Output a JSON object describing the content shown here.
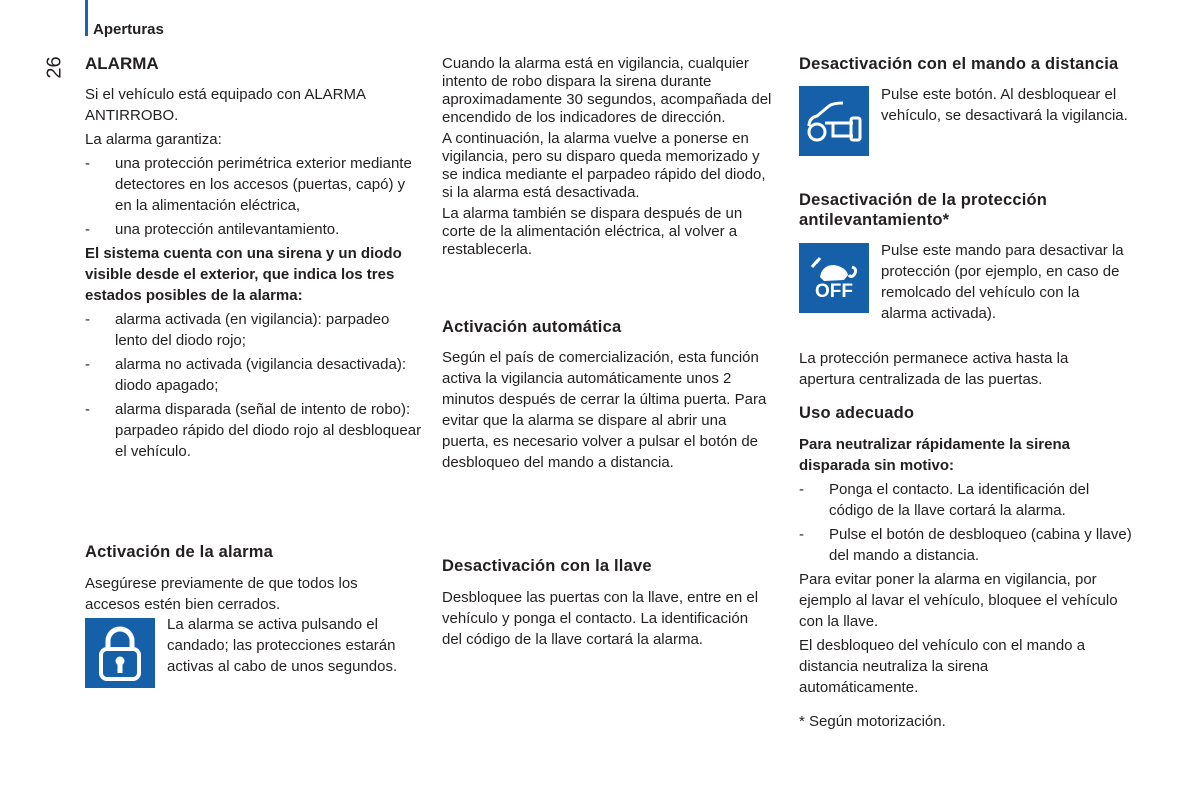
{
  "header": {
    "section": "Aperturas",
    "page_number": "26"
  },
  "col1": {
    "title": "ALARMA",
    "intro": [
      "Si el vehículo está equipado con ALARMA ANTIRROBO.",
      "La alarma garantiza:"
    ],
    "guarantees": [
      "una protección perimétrica exterior mediante detectores en los accesos (puertas, capó) y en la alimentación eléctrica,",
      "una protección antilevantamiento."
    ],
    "bold_text": "El sistema cuenta con una sirena y un diodo visible desde el exterior, que indica los tres estados posibles de la alarma:",
    "states": [
      "alarma activada (en vigilancia): parpadeo lento del diodo rojo;",
      "alarma no activada (vigilancia desactivada): diodo apagado;",
      "alarma disparada (señal de intento de robo): parpadeo rápido del diodo rojo al desbloquear el vehículo."
    ],
    "activation_title": "Activación de la alarma",
    "activation_text": "Asegúrese previamente de que todos los accesos estén bien cerrados.",
    "padlock_text": "La alarma se activa pulsando el candado; las protecciones estarán activas al cabo de unos segundos.",
    "padlock_icon": "padlock-icon"
  },
  "col2": {
    "p1": "Cuando la alarma está en vigilancia, cualquier intento de robo dispara la sirena durante aproximadamente 30 segundos, acompañada del encendido de los indicadores de dirección.",
    "p2": "A continuación, la alarma vuelve a ponerse en vigilancia, pero su disparo queda memorizado y se indica mediante el parpadeo rápido del diodo, si la alarma está desactivada.",
    "p3": "La alarma también se dispara después de un corte de la alimentación eléctrica, al volver a restablecerla.",
    "auto_title": "Activación automática",
    "auto_text": "Según el país de comercialización, esta función activa la vigilancia automáticamente unos 2 minutos después de cerrar la última puerta. Para evitar que la alarma se dispare al abrir una puerta, es necesario volver a pulsar el botón de desbloqueo del mando a distancia.",
    "key_title": "Desactivación con la llave",
    "key_text": "Desbloquee las puertas con la llave, entre en el vehículo y ponga el contacto. La identificación del código de la llave cortará la alarma."
  },
  "col3": {
    "remote_title": "Desactivación con el mando a distancia",
    "remote_text": "Pulse este botón. Al desbloquear el vehículo, se desactivará la vigilancia.",
    "remote_icon": "car-unlock-icon",
    "antilift_title": "Desactivación de la protección antilevantamiento*",
    "antilift_text": "Pulse este mando para desactivar la protección (por ejemplo, en caso de remolcado del vehículo con la alarma activada).",
    "antilift_icon_label": "OFF",
    "antilift_after": "La protección permanece activa hasta la apertura centralizada de las puertas.",
    "use_title": "Uso adecuado",
    "use_bold": "Para neutralizar rápidamente la sirena disparada sin motivo:",
    "use_items": [
      "Ponga el contacto. La identificación del código de la llave cortará la alarma.",
      "Pulse el botón de desbloqueo (cabina y llave) del mando a distancia."
    ],
    "use_p1": "Para evitar poner la alarma en vigilancia, por ejemplo al lavar el vehículo, bloquee el vehículo con la llave.",
    "use_p2": "El desbloqueo del vehículo con el mando a distancia neutraliza la sirena automáticamente.",
    "footnote": "* Según motorización."
  },
  "colors": {
    "accent": "#1560a8",
    "text": "#231f20"
  }
}
